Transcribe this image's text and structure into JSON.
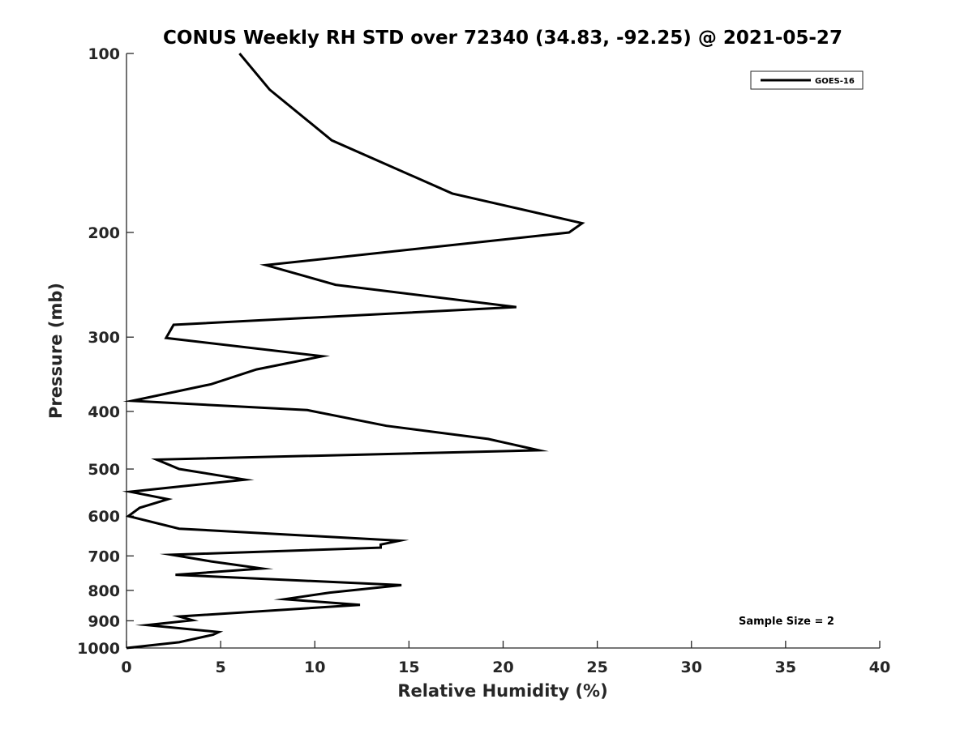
{
  "chart_data": {
    "type": "line",
    "title": "CONUS Weekly RH STD over 72340 (34.83, -92.25) @ 2021-05-27",
    "xlabel": "Relative Humidity (%)",
    "ylabel": "Pressure (mb)",
    "xlim": [
      0,
      40
    ],
    "ylim": [
      1000,
      100
    ],
    "y_scale": "log",
    "y_reversed": true,
    "xticks": [
      0,
      5,
      10,
      15,
      20,
      25,
      30,
      35,
      40
    ],
    "yticks": [
      100,
      200,
      300,
      400,
      500,
      600,
      700,
      800,
      900,
      1000
    ],
    "grid": false,
    "legend_position": "top-right",
    "series": [
      {
        "name": "GOES-16",
        "color": "#000000",
        "x": [
          6.0,
          7.6,
          10.9,
          17.3,
          24.2,
          23.5,
          7.4,
          11.1,
          20.7,
          2.5,
          2.1,
          10.4,
          6.9,
          4.5,
          0.3,
          9.6,
          13.8,
          19.2,
          21.9,
          1.6,
          2.8,
          6.3,
          0.2,
          2.2,
          0.7,
          0.1,
          2.8,
          14.5,
          13.5,
          13.5,
          2.4,
          4.5,
          7.2,
          2.6,
          14.6,
          10.8,
          8.4,
          12.4,
          2.8,
          3.5,
          1.1,
          4.9,
          4.6,
          2.8,
          0.0
        ],
        "y": [
          100,
          115,
          140,
          172,
          193,
          200,
          227,
          245,
          267,
          286,
          301,
          323,
          340,
          360,
          384,
          398,
          423,
          445,
          465,
          482,
          500,
          521,
          546,
          562,
          581,
          600,
          630,
          660,
          670,
          678,
          697,
          715,
          735,
          753,
          784,
          807,
          828,
          846,
          885,
          898,
          915,
          940,
          950,
          978,
          1000
        ]
      }
    ],
    "annotation": "Sample Size = 2"
  }
}
